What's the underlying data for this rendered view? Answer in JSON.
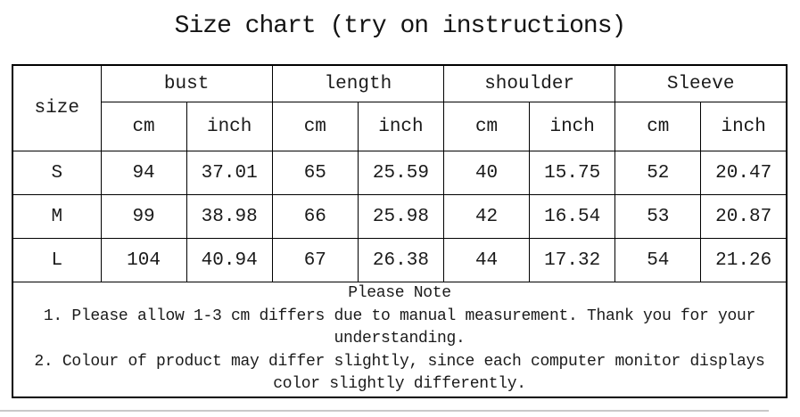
{
  "title": "Size chart (try on instructions)",
  "table": {
    "columns": {
      "size": "size",
      "groups": [
        "bust",
        "length",
        "shoulder",
        "Sleeve"
      ],
      "units": [
        "cm",
        "inch",
        "cm",
        "inch",
        "cm",
        "inch",
        "cm",
        "inch"
      ]
    },
    "rows": [
      {
        "size": "S",
        "values": [
          "94",
          "37.01",
          "65",
          "25.59",
          "40",
          "15.75",
          "52",
          "20.47"
        ]
      },
      {
        "size": "M",
        "values": [
          "99",
          "38.98",
          "66",
          "25.98",
          "42",
          "16.54",
          "53",
          "20.87"
        ]
      },
      {
        "size": "L",
        "values": [
          "104",
          "40.94",
          "67",
          "26.38",
          "44",
          "17.32",
          "54",
          "21.26"
        ]
      }
    ]
  },
  "note": {
    "heading": "Please Note",
    "lines": [
      "1. Please allow 1-3 cm differs due to manual measurement. Thank you for your understanding.",
      "2. Colour of product may differ slightly, since each computer monitor displays color slightly differently."
    ]
  }
}
